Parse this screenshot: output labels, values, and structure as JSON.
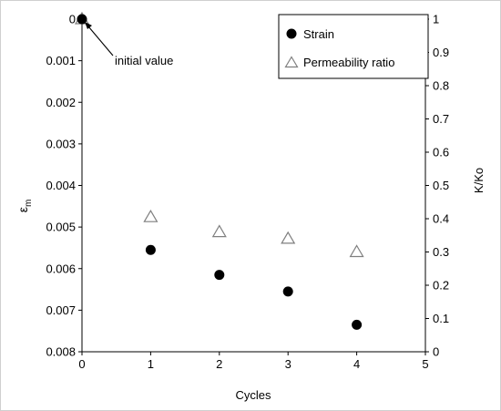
{
  "chart_data": {
    "type": "scatter",
    "xlabel": "Cycles",
    "ylabel_left_main": "ε",
    "ylabel_left_sub": "m",
    "ylabel_right": "K/Ko",
    "xlim": [
      0,
      5
    ],
    "ylim_left": [
      0,
      0.008
    ],
    "ylim_left_inverted": true,
    "ylim_right": [
      0,
      1
    ],
    "x_ticks": [
      "0",
      "1",
      "2",
      "3",
      "4",
      "5"
    ],
    "y_left_ticks": [
      "0",
      "0.001",
      "0.002",
      "0.003",
      "0.004",
      "0.005",
      "0.006",
      "0.007",
      "0.008"
    ],
    "y_right_ticks": [
      "0",
      "0.1",
      "0.2",
      "0.3",
      "0.4",
      "0.5",
      "0.6",
      "0.7",
      "0.8",
      "0.9",
      "1"
    ],
    "grid": false,
    "legend_position": "top-right",
    "series": [
      {
        "name": "Strain",
        "axis": "left",
        "marker": "filled-circle",
        "color": "#000000",
        "x": [
          0,
          1,
          2,
          3,
          4
        ],
        "values": [
          0,
          0.00555,
          0.00615,
          0.00655,
          0.00735
        ]
      },
      {
        "name": "Permeability ratio",
        "axis": "right",
        "marker": "open-triangle",
        "color": "#7f7f7f",
        "x": [
          0,
          1,
          2,
          3,
          4
        ],
        "values": [
          1.0,
          0.405,
          0.36,
          0.34,
          0.3
        ]
      }
    ],
    "annotations": [
      {
        "text": "initial value",
        "x": 0,
        "y": 0
      }
    ]
  }
}
